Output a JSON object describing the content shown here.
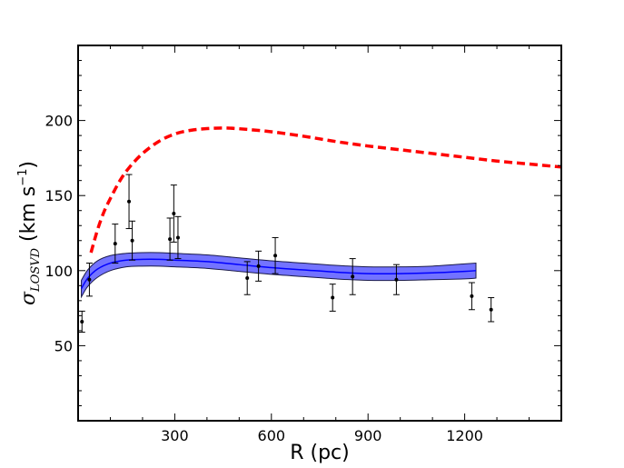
{
  "chart_data": {
    "type": "scatter",
    "title": "",
    "xlabel": "R (pc)",
    "ylabel": {
      "symbol": "σ",
      "subscript": "LOSVD",
      "units_prefix": " (km s",
      "units_exp": "−1",
      "units_suffix": ")"
    },
    "xlim": [
      0,
      1500
    ],
    "ylim": [
      0,
      250
    ],
    "xticks": [
      300,
      600,
      900,
      1200
    ],
    "xtick_labels": [
      "300",
      "600",
      "900",
      "1200"
    ],
    "yticks": [
      50,
      100,
      150,
      200
    ],
    "ytick_labels": [
      "50",
      "100",
      "150",
      "200"
    ],
    "minor_xtick_step": 100,
    "minor_ytick_step": 10,
    "grid": false,
    "series": [
      {
        "name": "observed",
        "kind": "errorbar",
        "color": "#000000",
        "points": [
          {
            "x": 12,
            "y": 66,
            "err": 7
          },
          {
            "x": 35,
            "y": 94,
            "err": 11
          },
          {
            "x": 115,
            "y": 118,
            "err": 13
          },
          {
            "x": 158,
            "y": 146,
            "err": 18
          },
          {
            "x": 168,
            "y": 120,
            "err": 13
          },
          {
            "x": 285,
            "y": 121,
            "err": 14
          },
          {
            "x": 297,
            "y": 138,
            "err": 19
          },
          {
            "x": 310,
            "y": 122,
            "err": 14
          },
          {
            "x": 525,
            "y": 95,
            "err": 11
          },
          {
            "x": 560,
            "y": 103,
            "err": 10
          },
          {
            "x": 612,
            "y": 110,
            "err": 12
          },
          {
            "x": 790,
            "y": 82,
            "err": 9
          },
          {
            "x": 852,
            "y": 96,
            "err": 12
          },
          {
            "x": 988,
            "y": 94,
            "err": 10
          },
          {
            "x": 1222,
            "y": 83,
            "err": 9
          },
          {
            "x": 1282,
            "y": 74,
            "err": 8
          }
        ]
      },
      {
        "name": "model-band",
        "kind": "band",
        "color": "#0000ff",
        "x": [
          10,
          30,
          60,
          100,
          150,
          200,
          250,
          300,
          400,
          500,
          600,
          700,
          800,
          900,
          1000,
          1100,
          1200,
          1235
        ],
        "mid": [
          88,
          95,
          101,
          105,
          107,
          107.5,
          107.5,
          107,
          106,
          104,
          102,
          100.5,
          99,
          98,
          98,
          98.5,
          99.5,
          100
        ],
        "width": [
          5.5,
          5.5,
          5.5,
          5,
          4.5,
          4.5,
          4.5,
          4.5,
          4.5,
          4.5,
          4.5,
          4.5,
          4.5,
          4.5,
          4.5,
          4.5,
          5,
          5
        ]
      },
      {
        "name": "model-dashed",
        "kind": "dashed-line",
        "color": "#ff0000",
        "x": [
          40,
          60,
          80,
          100,
          130,
          160,
          200,
          250,
          300,
          350,
          400,
          450,
          500,
          600,
          700,
          800,
          900,
          1000,
          1100,
          1200,
          1300,
          1400,
          1500
        ],
        "y": [
          112,
          127,
          139,
          148,
          160,
          169,
          178,
          186,
          191,
          193.5,
          194.6,
          195,
          194.5,
          192.5,
          189.5,
          186,
          183,
          180.5,
          178,
          175.5,
          173,
          171,
          169
        ]
      }
    ]
  }
}
